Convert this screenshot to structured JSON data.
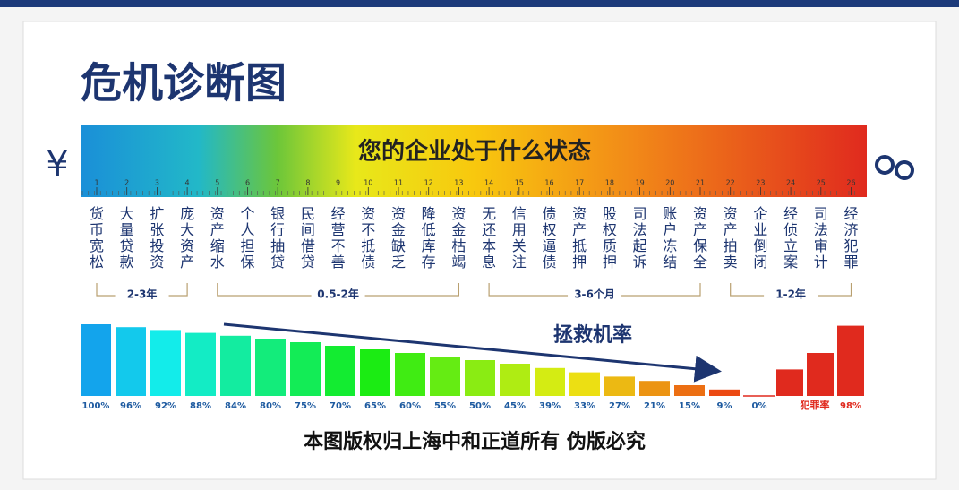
{
  "title": "危机诊断图",
  "banner": "您的企业处于什么状态",
  "currency": "¥",
  "ruler_numbers": [
    1,
    2,
    3,
    4,
    5,
    6,
    7,
    8,
    9,
    10,
    11,
    12,
    13,
    14,
    15,
    16,
    17,
    18,
    19,
    20,
    21,
    22,
    23,
    24,
    25,
    26
  ],
  "stages": [
    "货币宽松",
    "大量贷款",
    "扩张投资",
    "庞大资产",
    "资产缩水",
    "个人担保",
    "银行抽贷",
    "民间借贷",
    "经营不善",
    "资不抵债",
    "资金缺乏",
    "降低库存",
    "资金枯竭",
    "无还本息",
    "信用关注",
    "债权逼债",
    "资产抵押",
    "股权质押",
    "司法起诉",
    "账户冻结",
    "资产保全",
    "资产拍卖",
    "企业倒闭",
    "经侦立案",
    "司法审计",
    "经济犯罪"
  ],
  "periods": [
    "2-3年",
    "0.5-2年",
    "3-6个月",
    "1-2年"
  ],
  "rescue_label": "拯救机率",
  "rescue_rates": {
    "values": [
      100,
      96,
      92,
      88,
      84,
      80,
      75,
      70,
      65,
      60,
      55,
      50,
      45,
      39,
      33,
      27,
      21,
      15,
      9,
      0
    ],
    "value_labels": [
      "100%",
      "96%",
      "92%",
      "88%",
      "84%",
      "80%",
      "75%",
      "70%",
      "65%",
      "60%",
      "55%",
      "50%",
      "45%",
      "39%",
      "33%",
      "27%",
      "21%",
      "15%",
      "9%",
      "0%"
    ]
  },
  "crime_label": "犯罪率",
  "crime_rates": {
    "values": [
      37,
      60,
      98
    ],
    "value_labels": [
      null,
      null,
      "98%"
    ]
  },
  "footer": "本图版权归上海中和正道所有 伪版必究"
}
